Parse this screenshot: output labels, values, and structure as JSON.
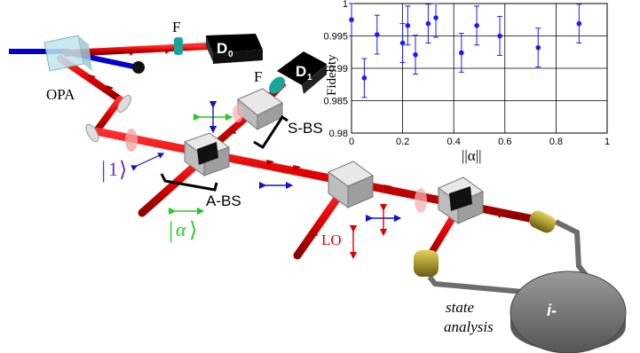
{
  "labels": {
    "opa": "OPA",
    "filter_top": "F",
    "filter_mid": "F",
    "detector0": "D",
    "detector0_sub": "0",
    "detector1": "D",
    "detector1_sub": "1",
    "sbs": "S-BS",
    "abs": "A-BS",
    "ket1_open": "|",
    "ket1_value": "1",
    "ket1_close": "⟩",
    "keta_open": "|",
    "keta_value": "α",
    "keta_close": "⟩",
    "lo": "LO",
    "state_analysis_line1": "state",
    "state_analysis_line2": "analysis",
    "analyzer": "i-"
  },
  "colors": {
    "beam": "#e00000",
    "beam_dark": "#9a0000",
    "pump": "#0000cc",
    "ket1": "#6a2bd1",
    "keta": "#22cc22",
    "fiber_connector": "#b5a22a",
    "arrow_blue": "#1010d0",
    "arrow_red": "#e00000",
    "arrow_green": "#22cc22",
    "data_point": "#1a1aff"
  },
  "chart_data": {
    "type": "scatter",
    "xlabel": "||α||",
    "ylabel": "Fidelity",
    "xlim": [
      0,
      1
    ],
    "ylim": [
      0.98,
      1.0
    ],
    "xticks": [
      "0",
      "0.2",
      "0.4",
      "0.6",
      "0.8",
      "1"
    ],
    "yticks": [
      "0.98",
      "0.985",
      "0.99",
      "0.995",
      "1"
    ],
    "grid": true,
    "points": [
      {
        "x": 0.0,
        "y": 0.9975,
        "err": 0.0025
      },
      {
        "x": 0.05,
        "y": 0.9885,
        "err": 0.003
      },
      {
        "x": 0.1,
        "y": 0.9952,
        "err": 0.003
      },
      {
        "x": 0.2,
        "y": 0.9939,
        "err": 0.003
      },
      {
        "x": 0.22,
        "y": 0.9966,
        "err": 0.003
      },
      {
        "x": 0.25,
        "y": 0.9921,
        "err": 0.003
      },
      {
        "x": 0.3,
        "y": 0.9969,
        "err": 0.003
      },
      {
        "x": 0.33,
        "y": 0.9978,
        "err": 0.003
      },
      {
        "x": 0.43,
        "y": 0.9924,
        "err": 0.003
      },
      {
        "x": 0.49,
        "y": 0.9966,
        "err": 0.003
      },
      {
        "x": 0.58,
        "y": 0.995,
        "err": 0.003
      },
      {
        "x": 0.73,
        "y": 0.9932,
        "err": 0.003
      },
      {
        "x": 0.89,
        "y": 0.9969,
        "err": 0.003
      }
    ]
  }
}
